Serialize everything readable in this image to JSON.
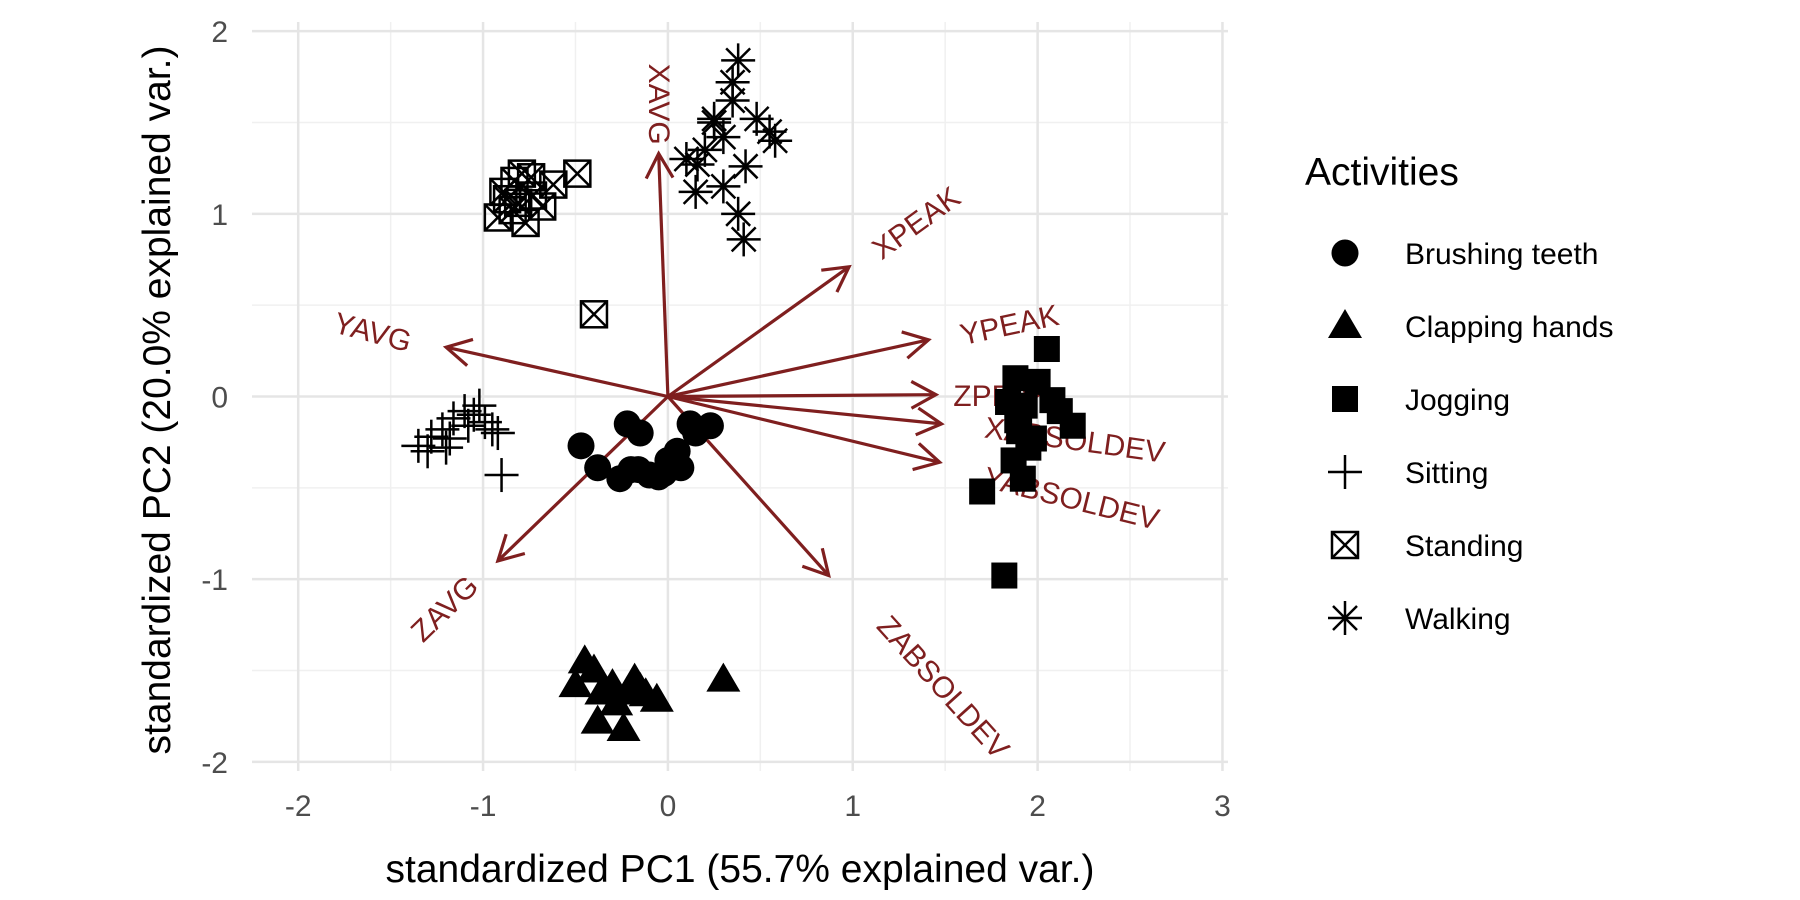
{
  "chart_data": {
    "type": "scatter",
    "subtype": "pca-biplot",
    "xlabel": "standardized PC1 (55.7% explained var.)",
    "ylabel": "standardized PC2 (20.0% explained var.)",
    "xlim": [
      -2.25,
      3.03
    ],
    "ylim": [
      -2.05,
      2.05
    ],
    "x_ticks": [
      "-2",
      "-1",
      "0",
      "1",
      "2",
      "3"
    ],
    "y_ticks": [
      "-2",
      "-1",
      "0",
      "1",
      "2"
    ],
    "grid": true,
    "legend": {
      "title": "Activities",
      "position": "right",
      "entries": [
        {
          "label": "Brushing teeth",
          "shape": "circle"
        },
        {
          "label": "Clapping hands",
          "shape": "triangle"
        },
        {
          "label": "Jogging",
          "shape": "square"
        },
        {
          "label": "Sitting",
          "shape": "plus"
        },
        {
          "label": "Standing",
          "shape": "boxcross"
        },
        {
          "label": "Walking",
          "shape": "asterisk"
        }
      ]
    },
    "arrow_color": "#7f1f1f",
    "arrows": [
      {
        "label": "XAVG",
        "x": -0.05,
        "y": 1.33,
        "label_x": -0.06,
        "label_y": 1.6,
        "label_angle": 90
      },
      {
        "label": "YAVG",
        "x": -1.2,
        "y": 0.27,
        "label_x": -1.6,
        "label_y": 0.34,
        "label_angle": 15
      },
      {
        "label": "ZAVG",
        "x": -0.92,
        "y": -0.9,
        "label_x": -1.2,
        "label_y": -1.17,
        "label_angle": -44
      },
      {
        "label": "XPEAK",
        "x": 0.98,
        "y": 0.71,
        "label_x": 1.35,
        "label_y": 0.94,
        "label_angle": -36
      },
      {
        "label": "YPEAK",
        "x": 1.41,
        "y": 0.31,
        "label_x": 1.85,
        "label_y": 0.38,
        "label_angle": -12
      },
      {
        "label": "ZPEAK",
        "x": 1.45,
        "y": 0.01,
        "label_x": 1.81,
        "label_y": -0.01,
        "label_angle": 0
      },
      {
        "label": "XABSOLDEV",
        "x": 1.48,
        "y": -0.15,
        "label_x": 2.2,
        "label_y": -0.25,
        "label_angle": 8
      },
      {
        "label": "YABSOLDEV",
        "x": 1.47,
        "y": -0.36,
        "label_x": 2.18,
        "label_y": -0.57,
        "label_angle": 14
      },
      {
        "label": "ZABSOLDEV",
        "x": 0.87,
        "y": -0.98,
        "label_x": 1.48,
        "label_y": -1.6,
        "label_angle": 48
      }
    ],
    "series": [
      {
        "name": "Brushing teeth",
        "shape": "circle",
        "x": [
          -0.47,
          -0.38,
          -0.26,
          -0.22,
          -0.16,
          -0.1,
          -0.05,
          0.0,
          0.07,
          0.12,
          0.15,
          0.23,
          -0.2,
          -0.15,
          -0.02,
          0.05
        ],
        "y": [
          -0.27,
          -0.39,
          -0.45,
          -0.15,
          -0.4,
          -0.43,
          -0.44,
          -0.35,
          -0.39,
          -0.15,
          -0.2,
          -0.16,
          -0.4,
          -0.2,
          -0.42,
          -0.3
        ]
      },
      {
        "name": "Clapping hands",
        "shape": "triangle",
        "x": [
          -0.45,
          -0.4,
          -0.36,
          -0.3,
          -0.24,
          -0.18,
          -0.12,
          -0.06,
          -0.38,
          -0.22,
          0.3,
          -0.28,
          -0.15,
          -0.5
        ],
        "y": [
          -1.45,
          -1.5,
          -1.62,
          -1.58,
          -1.82,
          -1.55,
          -1.63,
          -1.66,
          -1.78,
          -1.62,
          -1.55,
          -1.68,
          -1.6,
          -1.58
        ]
      },
      {
        "name": "Jogging",
        "shape": "square",
        "x": [
          2.05,
          1.88,
          1.93,
          2.0,
          2.08,
          2.12,
          2.19,
          1.84,
          1.9,
          1.95,
          1.87,
          1.92,
          1.7,
          1.82,
          1.89,
          1.98
        ],
        "y": [
          0.26,
          0.1,
          -0.05,
          0.08,
          -0.02,
          -0.08,
          -0.16,
          -0.03,
          -0.19,
          -0.28,
          -0.35,
          -0.45,
          -0.52,
          -0.98,
          -0.13,
          -0.23
        ]
      },
      {
        "name": "Sitting",
        "shape": "plus",
        "x": [
          -1.35,
          -1.28,
          -1.22,
          -1.16,
          -1.1,
          -1.05,
          -0.99,
          -0.95,
          -0.92,
          -0.9,
          -1.3,
          -1.18,
          -1.08,
          -1.2,
          -1.02
        ],
        "y": [
          -0.27,
          -0.22,
          -0.18,
          -0.12,
          -0.08,
          -0.1,
          -0.14,
          -0.18,
          -0.2,
          -0.43,
          -0.3,
          -0.23,
          -0.16,
          -0.28,
          -0.05
        ]
      },
      {
        "name": "Standing",
        "shape": "boxcross",
        "x": [
          -0.92,
          -0.87,
          -0.83,
          -0.79,
          -0.73,
          -0.68,
          -0.62,
          -0.49,
          -0.77,
          -0.84,
          -0.89,
          -0.74,
          -0.81,
          -0.4
        ],
        "y": [
          0.98,
          1.08,
          1.18,
          1.22,
          1.1,
          1.04,
          1.16,
          1.22,
          0.95,
          1.02,
          1.12,
          1.2,
          1.06,
          0.45
        ]
      },
      {
        "name": "Walking",
        "shape": "asterisk",
        "x": [
          0.1,
          0.15,
          0.2,
          0.25,
          0.3,
          0.35,
          0.38,
          0.35,
          0.42,
          0.48,
          0.55,
          0.58,
          0.38,
          0.3,
          0.25,
          0.16,
          0.41
        ],
        "y": [
          1.3,
          1.12,
          1.35,
          1.5,
          1.42,
          1.62,
          1.84,
          1.72,
          1.26,
          1.52,
          1.45,
          1.4,
          1.0,
          1.15,
          1.52,
          1.27,
          0.86
        ]
      }
    ]
  }
}
